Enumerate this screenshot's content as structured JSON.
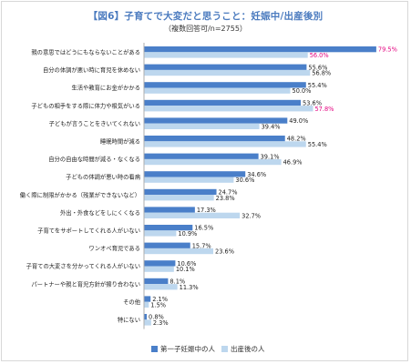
{
  "header": {
    "title": "【図6】子育てで大変だと思うこと：妊娠中/出産後別",
    "subtitle": "（複数回答可/n=2755）"
  },
  "colors": {
    "series1": "#4a7fc9",
    "series2": "#bdd7ee",
    "highlight_label": "#e4007f"
  },
  "chart_data": {
    "type": "bar",
    "orientation": "horizontal",
    "categories": [
      "親の意思ではどうにもならないことがある",
      "自分の体調が悪い時に育児を休めない",
      "生活や教育にお金がかかる",
      "子どもの相手をする際に体力や根気がいる",
      "子どもが言うことをきいてくれない",
      "睡眠時間が減る",
      "自分の自由な時間が減る・なくなる",
      "子どもの体調が悪い時の看病",
      "働く際に制限がかかる（残業ができないなど）",
      "外出・外食などをしにくくなる",
      "子育てをサポートしてくれる人がいない",
      "ワンオペ育児である",
      "子育ての大変さを分かってくれる人がいない",
      "パートナーや親と育児方針が擦り合わない",
      "その他",
      "特にない"
    ],
    "series": [
      {
        "name": "第一子妊娠中の人",
        "values": [
          79.5,
          55.6,
          55.4,
          53.6,
          49.0,
          48.2,
          39.1,
          34.6,
          24.7,
          17.3,
          16.5,
          15.7,
          10.6,
          8.1,
          2.1,
          0.8
        ],
        "labels": [
          "79.5%",
          "55.6%",
          "55.4%",
          "53.6%",
          "49.0%",
          "48.2%",
          "39.1%",
          "34.6%",
          "24.7%",
          "17.3%",
          "16.5%",
          "15.7%",
          "10.6%",
          "8.1%",
          "2.1%",
          "0.8%"
        ]
      },
      {
        "name": "出産後の人",
        "values": [
          56.0,
          56.8,
          50.0,
          57.8,
          39.4,
          55.4,
          46.9,
          30.6,
          23.8,
          32.7,
          10.9,
          23.6,
          10.1,
          11.3,
          1.5,
          2.3
        ],
        "labels": [
          "56.0%",
          "56.8%",
          "50.0%",
          "57.8%",
          "39.4%",
          "55.4%",
          "46.9%",
          "30.6%",
          "23.8%",
          "32.7%",
          "10.9%",
          "23.6%",
          "10.1%",
          "11.3%",
          "1.5%",
          "2.3%"
        ]
      }
    ],
    "highlighted_labels": [
      [
        0,
        0
      ],
      [
        0,
        1
      ],
      [
        3,
        1
      ]
    ],
    "xlim": [
      0,
      80
    ],
    "legend_position": "bottom-right",
    "grid": false
  }
}
